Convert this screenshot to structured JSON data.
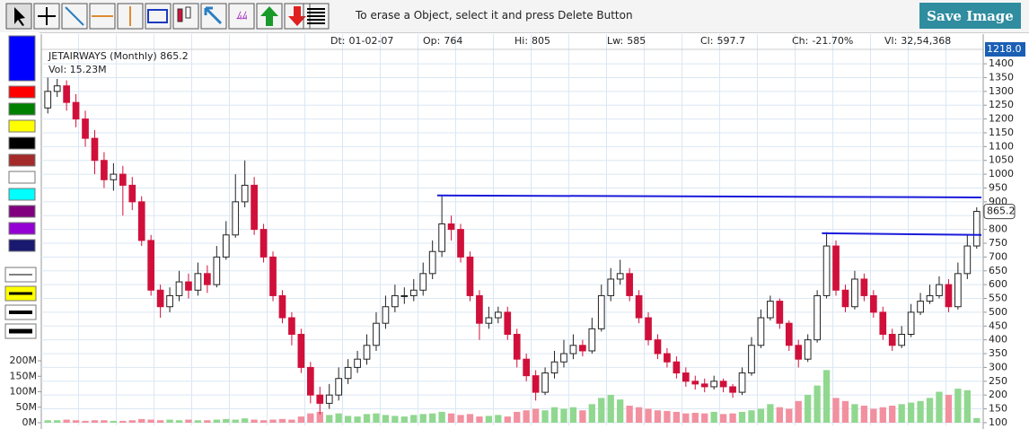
{
  "toolbar": {
    "message": "To erase a Object, select it and press Delete Button",
    "save_button": "Save Image"
  },
  "chart_data": {
    "type": "candlestick",
    "title": "JETAIRWAYS (Monthly) 865.2",
    "volume_label": "Vol: 15.23M",
    "info": [
      {
        "label": "Dt:",
        "value": "01-02-07"
      },
      {
        "label": "Op:",
        "value": 764
      },
      {
        "label": "Hi:",
        "value": 805
      },
      {
        "label": "Lw:",
        "value": 585
      },
      {
        "label": "Cl:",
        "value": 597.7
      },
      {
        "label": "Ch:",
        "value": "-21.70%"
      },
      {
        "label": "Vl:",
        "value": "32,54,368"
      }
    ],
    "price_readout": "1218.0",
    "last_price": 865.2,
    "open": [
      1240,
      1300,
      1320,
      1260,
      1200,
      1130,
      1050,
      980,
      1000,
      960,
      900,
      760,
      580,
      520,
      560,
      610,
      580,
      640,
      600,
      700,
      780,
      900,
      960,
      800,
      700,
      560,
      480,
      420,
      300,
      200,
      170,
      200,
      260,
      300,
      330,
      380,
      460,
      520,
      560,
      560,
      580,
      640,
      720,
      820,
      800,
      700,
      560,
      460,
      480,
      500,
      420,
      330,
      270,
      210,
      280,
      320,
      350,
      380,
      360,
      440,
      560,
      620,
      640,
      560,
      480,
      400,
      350,
      320,
      280,
      250,
      240,
      230,
      250,
      230,
      210,
      280,
      380,
      480,
      540,
      460,
      380,
      330,
      400,
      560,
      740,
      580,
      520,
      620,
      560,
      500,
      420,
      380,
      420,
      500,
      540,
      560,
      600,
      520,
      640,
      740
    ],
    "high": [
      1350,
      1345,
      1340,
      1290,
      1230,
      1160,
      1080,
      1040,
      1030,
      990,
      920,
      780,
      600,
      590,
      650,
      640,
      680,
      670,
      740,
      830,
      1000,
      1050,
      990,
      820,
      720,
      580,
      500,
      440,
      320,
      230,
      240,
      300,
      330,
      360,
      420,
      500,
      560,
      600,
      590,
      620,
      680,
      760,
      920,
      850,
      820,
      720,
      580,
      520,
      520,
      520,
      440,
      350,
      290,
      300,
      360,
      400,
      420,
      400,
      480,
      600,
      660,
      690,
      660,
      580,
      500,
      420,
      370,
      340,
      300,
      270,
      260,
      270,
      260,
      240,
      300,
      410,
      510,
      560,
      550,
      470,
      400,
      420,
      580,
      790,
      760,
      600,
      650,
      640,
      580,
      520,
      440,
      450,
      530,
      570,
      600,
      630,
      620,
      680,
      780,
      880
    ],
    "low": [
      1220,
      1280,
      1230,
      1170,
      1100,
      1000,
      950,
      940,
      850,
      870,
      740,
      560,
      480,
      500,
      540,
      550,
      560,
      570,
      590,
      690,
      770,
      880,
      780,
      680,
      540,
      460,
      380,
      280,
      170,
      130,
      150,
      180,
      240,
      280,
      310,
      360,
      440,
      500,
      530,
      540,
      560,
      620,
      700,
      760,
      680,
      540,
      400,
      440,
      460,
      400,
      300,
      250,
      180,
      200,
      260,
      300,
      330,
      340,
      350,
      430,
      540,
      600,
      540,
      460,
      380,
      330,
      300,
      260,
      230,
      220,
      210,
      220,
      210,
      190,
      200,
      270,
      370,
      470,
      440,
      360,
      300,
      320,
      390,
      550,
      560,
      500,
      510,
      540,
      480,
      400,
      360,
      370,
      410,
      490,
      530,
      550,
      500,
      510,
      620,
      730
    ],
    "close": [
      1300,
      1320,
      1260,
      1200,
      1130,
      1050,
      980,
      1000,
      960,
      900,
      760,
      580,
      520,
      560,
      610,
      580,
      640,
      600,
      700,
      780,
      900,
      960,
      800,
      700,
      560,
      480,
      420,
      300,
      200,
      170,
      200,
      260,
      300,
      330,
      380,
      460,
      520,
      560,
      560,
      580,
      640,
      720,
      820,
      800,
      700,
      560,
      460,
      480,
      500,
      420,
      330,
      270,
      210,
      280,
      320,
      350,
      380,
      360,
      440,
      560,
      620,
      640,
      560,
      480,
      400,
      350,
      320,
      280,
      250,
      240,
      230,
      250,
      230,
      210,
      280,
      380,
      480,
      540,
      460,
      380,
      330,
      400,
      560,
      740,
      580,
      520,
      620,
      560,
      500,
      420,
      380,
      420,
      500,
      540,
      560,
      600,
      520,
      640,
      740,
      865.2
    ],
    "volume": [
      8,
      8,
      10,
      8,
      6,
      8,
      8,
      6,
      6,
      8,
      12,
      10,
      8,
      10,
      8,
      10,
      8,
      8,
      10,
      12,
      10,
      14,
      10,
      8,
      10,
      12,
      10,
      20,
      30,
      35,
      25,
      30,
      22,
      20,
      28,
      30,
      25,
      22,
      20,
      25,
      28,
      30,
      35,
      30,
      25,
      28,
      20,
      22,
      25,
      20,
      35,
      40,
      45,
      40,
      50,
      45,
      50,
      40,
      60,
      80,
      90,
      75,
      55,
      50,
      45,
      40,
      38,
      35,
      30,
      32,
      30,
      35,
      28,
      30,
      35,
      40,
      45,
      60,
      50,
      45,
      70,
      90,
      120,
      170,
      80,
      70,
      60,
      55,
      45,
      50,
      55,
      60,
      65,
      70,
      80,
      100,
      90,
      110,
      105,
      15
    ],
    "up_color": "#ffffff",
    "down_color": "#d0103a",
    "vol_up_color": "#90d890",
    "vol_down_color": "#f2909f",
    "ylim": [
      90,
      1475
    ],
    "yticks": [
      100,
      150,
      200,
      250,
      300,
      350,
      400,
      450,
      500,
      550,
      600,
      650,
      700,
      750,
      800,
      850,
      900,
      950,
      1000,
      1050,
      1100,
      1150,
      1200,
      1250,
      1300,
      1350,
      1400
    ],
    "vol_ylim": [
      0,
      200
    ],
    "vol_ticks": [
      {
        "value": 0,
        "label": "0M"
      },
      {
        "value": 50,
        "label": "50M"
      },
      {
        "value": 100,
        "label": "100M"
      },
      {
        "value": 150,
        "label": "150M"
      },
      {
        "value": 200,
        "label": "200M"
      }
    ],
    "trendlines": [
      {
        "start": [
          42,
          923
        ],
        "end": [
          100,
          916
        ],
        "color": "#1a1adb"
      },
      {
        "start": [
          83,
          786
        ],
        "end": [
          100,
          780
        ],
        "color": "#1a1adb"
      }
    ],
    "grid": true
  }
}
